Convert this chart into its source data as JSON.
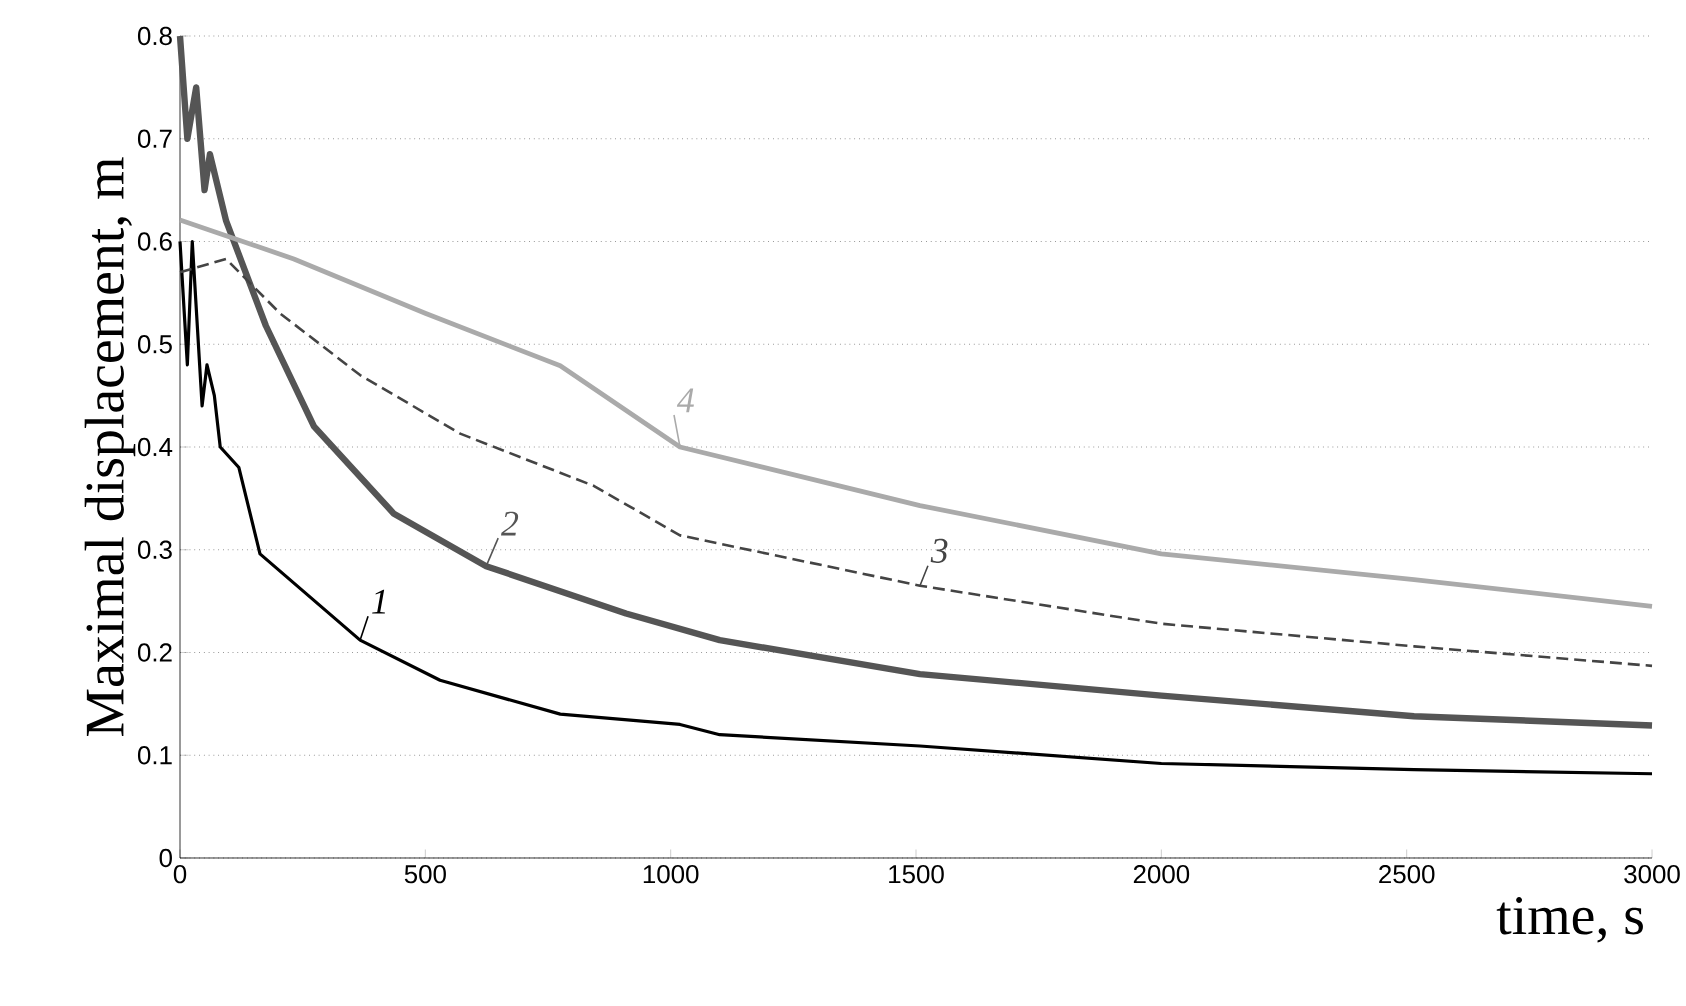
{
  "chart_data": {
    "type": "line",
    "xlabel": "time, s",
    "ylabel": "Maximal displacement, m",
    "xlim": [
      0,
      3000
    ],
    "ylim": [
      0,
      0.8
    ],
    "xticks": [
      0,
      500,
      1000,
      1500,
      2000,
      2500,
      3000
    ],
    "yticks": [
      0,
      0.1,
      0.2,
      0.3,
      0.4,
      0.5,
      0.6,
      0.7,
      0.8
    ],
    "grid": "y",
    "series": [
      {
        "name": "1",
        "color": "#000000",
        "line_style": "solid",
        "x": [
          0,
          15,
          25,
          45,
          55,
          70,
          82,
          120,
          163,
          367,
          530,
          775,
          1019,
          1100,
          1508,
          2000,
          2515,
          3000
        ],
        "values": [
          0.6,
          0.48,
          0.6,
          0.44,
          0.48,
          0.45,
          0.4,
          0.38,
          0.296,
          0.212,
          0.173,
          0.14,
          0.13,
          0.12,
          0.109,
          0.092,
          0.086,
          0.082
        ]
      },
      {
        "name": "2",
        "color": "#555555",
        "line_style": "solid",
        "x": [
          0,
          15,
          33,
          50,
          61,
          94,
          175,
          273,
          436,
          624,
          909,
          1100,
          1508,
          2000,
          2515,
          3000
        ],
        "values": [
          0.8,
          0.7,
          0.75,
          0.65,
          0.685,
          0.62,
          0.518,
          0.42,
          0.335,
          0.284,
          0.238,
          0.212,
          0.179,
          0.158,
          0.138,
          0.129
        ]
      },
      {
        "name": "3",
        "color": "#444444",
        "line_style": "dashed",
        "x": [
          0,
          94,
          204,
          367,
          571,
          844,
          1019,
          1508,
          2000,
          2515,
          3000
        ],
        "values": [
          0.57,
          0.583,
          0.53,
          0.47,
          0.413,
          0.362,
          0.314,
          0.265,
          0.228,
          0.206,
          0.187
        ]
      },
      {
        "name": "4",
        "color": "#aaaaaa",
        "line_style": "solid",
        "x": [
          0,
          232,
          501,
          775,
          1019,
          1508,
          2000,
          2515,
          3000
        ],
        "values": [
          0.621,
          0.583,
          0.53,
          0.479,
          0.4,
          0.343,
          0.296,
          0.271,
          0.245
        ]
      }
    ]
  }
}
